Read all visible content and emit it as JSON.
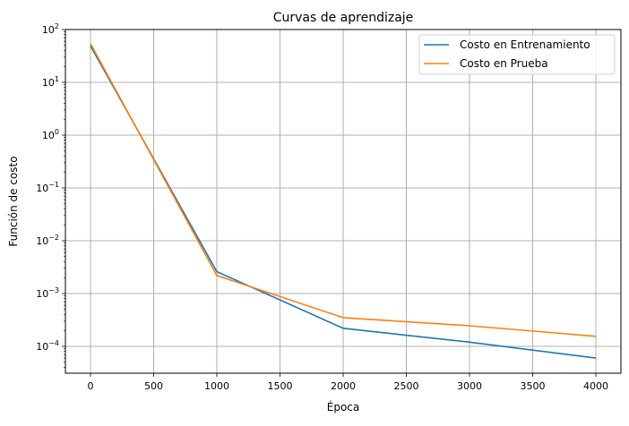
{
  "chart_data": {
    "type": "line",
    "title": "Curvas de aprendizaje",
    "xlabel": "Época",
    "ylabel": "Función de costo",
    "yscale": "log",
    "xlim": [
      -200,
      4200
    ],
    "ylim": [
      3e-05,
      100
    ],
    "grid": true,
    "legend_position": "upper right",
    "x": [
      0,
      1000,
      2000,
      3000,
      4000
    ],
    "x_ticks": [
      0,
      500,
      1000,
      1500,
      2000,
      2500,
      3000,
      3500,
      4000
    ],
    "x_tick_labels": [
      "0",
      "500",
      "1000",
      "1500",
      "2000",
      "2500",
      "3000",
      "3500",
      "4000"
    ],
    "y_ticks": [
      100,
      10,
      1,
      0.1,
      0.01,
      0.001,
      0.0001
    ],
    "y_tick_labels": [
      {
        "base": "10",
        "exp": "2"
      },
      {
        "base": "10",
        "exp": "1"
      },
      {
        "base": "10",
        "exp": "0"
      },
      {
        "base": "10",
        "exp": "−1"
      },
      {
        "base": "10",
        "exp": "−2"
      },
      {
        "base": "10",
        "exp": "−3"
      },
      {
        "base": "10",
        "exp": "−4"
      }
    ],
    "series": [
      {
        "name": "Costo en Entrenamiento",
        "color": "#1f77b4",
        "values": [
          49,
          0.0026,
          0.00022,
          0.00012,
          6e-05
        ]
      },
      {
        "name": "Costo en Prueba",
        "color": "#ff7f0e",
        "values": [
          54,
          0.0022,
          0.00035,
          0.000245,
          0.000155
        ]
      }
    ]
  }
}
